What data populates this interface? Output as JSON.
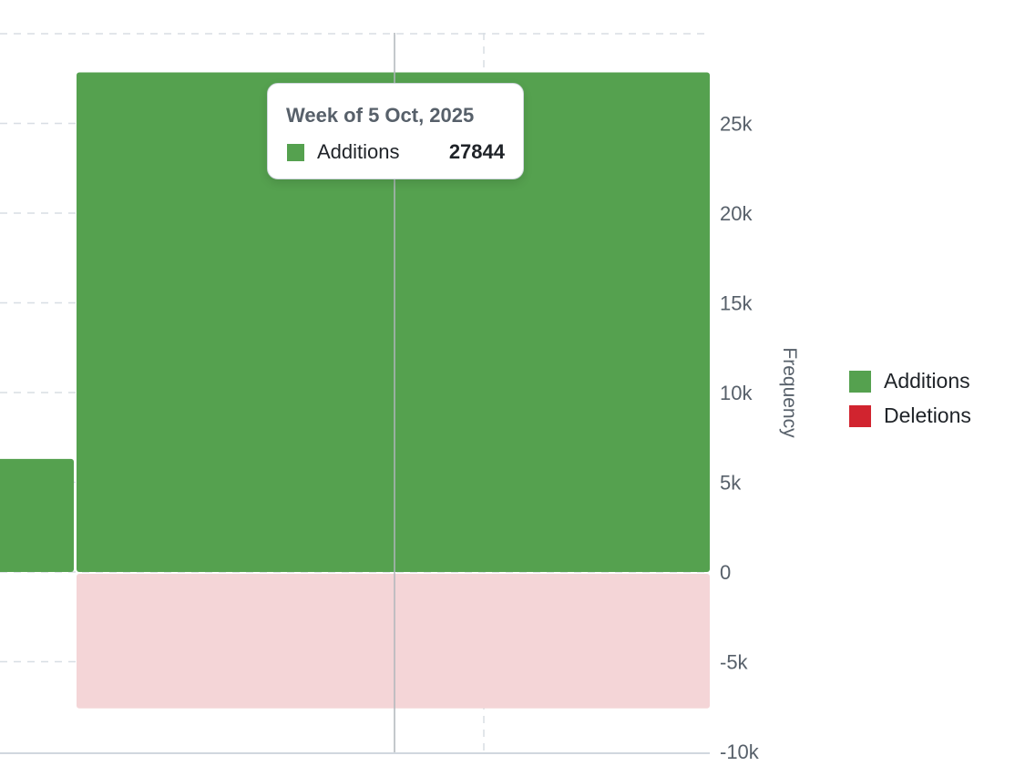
{
  "chart_data": {
    "type": "bar",
    "ylabel": "Frequency",
    "ylim": [
      -10000,
      30000
    ],
    "yticks": [
      -10000,
      -5000,
      0,
      5000,
      10000,
      15000,
      20000,
      25000
    ],
    "ytick_labels": [
      "-10k",
      "-5k",
      "0",
      "5k",
      "10k",
      "15k",
      "20k",
      "25k"
    ],
    "grid": true,
    "legend_position": "right",
    "series": [
      {
        "name": "Additions",
        "color": "#55a14f",
        "values": [
          6300,
          27844
        ]
      },
      {
        "name": "Deletions",
        "color": "#d1242f",
        "values": [
          0,
          -7600
        ]
      }
    ],
    "highlighted_index": 1
  },
  "tooltip": {
    "title": "Week of 5 Oct, 2025",
    "series_label": "Additions",
    "value": "27844",
    "color": "#55a14f"
  },
  "legend": [
    {
      "label": "Additions",
      "color": "#55a14f"
    },
    {
      "label": "Deletions",
      "color": "#d1242f"
    }
  ]
}
